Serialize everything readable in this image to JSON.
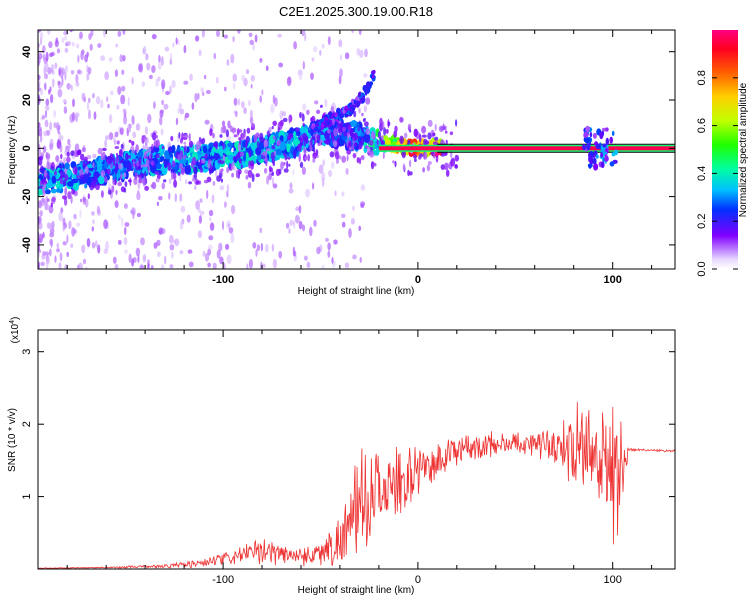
{
  "title": "C2E1.2025.300.19.00.R18",
  "chart_data": [
    {
      "type": "heatmap",
      "title": "C2E1.2025.300.19.00.R18",
      "xlabel": "Height of straight line (km)",
      "ylabel": "Frequency (Hz)",
      "xlim": [
        -195,
        132
      ],
      "ylim": [
        -50,
        49
      ],
      "x_ticks": [
        "-100",
        "0",
        "100"
      ],
      "y_ticks": [
        "-40",
        "-20",
        "0",
        "20",
        "40"
      ],
      "ridge": {
        "x": [
          -195,
          -170,
          -150,
          -130,
          -110,
          -90,
          -75,
          -65,
          -55,
          -48,
          -40,
          -30,
          -20,
          -10,
          0,
          10,
          30,
          60,
          90,
          100,
          132
        ],
        "freq": [
          -14,
          -11,
          -7,
          -5,
          -4,
          -2,
          0,
          2,
          5,
          7,
          6,
          5,
          2,
          1,
          0,
          0,
          0,
          0,
          0,
          0,
          0
        ],
        "amplitude": [
          0.35,
          0.3,
          0.3,
          0.32,
          0.35,
          0.35,
          0.33,
          0.33,
          0.32,
          0.3,
          0.25,
          0.3,
          0.45,
          0.7,
          0.85,
          0.9,
          0.95,
          0.95,
          0.95,
          0.95,
          0.95
        ]
      },
      "upper_branch": {
        "x": [
          -55,
          -45,
          -35,
          -28,
          -22
        ],
        "freq": [
          8,
          12,
          16,
          22,
          31
        ]
      }
    },
    {
      "type": "line",
      "xlabel": "Height of straight line (km)",
      "ylabel": "SNR (10 * v/v)",
      "y_multiplier": "(x10",
      "y_multiplier_exp": "4",
      "xlim": [
        -195,
        132
      ],
      "ylim": [
        0,
        3.3
      ],
      "x_ticks": [
        "-100",
        "0",
        "100"
      ],
      "y_ticks": [
        "1",
        "2",
        "3"
      ],
      "series": [
        {
          "name": "SNR",
          "color": "#ee3333",
          "x": [
            -195,
            -160,
            -130,
            -110,
            -100,
            -90,
            -80,
            -70,
            -60,
            -50,
            -40,
            -35,
            -30,
            -25,
            -20,
            -10,
            0,
            10,
            20,
            30,
            40,
            50,
            60,
            70,
            75,
            80,
            85,
            90,
            95,
            100,
            102,
            104,
            106,
            108,
            110,
            120,
            132
          ],
          "values": [
            0.01,
            0.02,
            0.04,
            0.08,
            0.13,
            0.2,
            0.24,
            0.22,
            0.18,
            0.22,
            0.38,
            0.6,
            0.9,
            1.0,
            1.05,
            1.2,
            1.35,
            1.5,
            1.62,
            1.7,
            1.72,
            1.74,
            1.75,
            1.72,
            1.7,
            1.68,
            1.65,
            1.6,
            1.55,
            1.4,
            1.5,
            1.4,
            1.3,
            1.65,
            1.65,
            1.64,
            1.63
          ],
          "noise": [
            0.005,
            0.01,
            0.03,
            0.08,
            0.1,
            0.15,
            0.2,
            0.18,
            0.15,
            0.2,
            0.4,
            0.6,
            0.8,
            0.8,
            0.7,
            0.5,
            0.4,
            0.3,
            0.25,
            0.22,
            0.2,
            0.2,
            0.22,
            0.3,
            0.4,
            0.6,
            0.8,
            0.9,
            1.0,
            1.2,
            1.4,
            1.0,
            0.8,
            0.02,
            0.02,
            0.02,
            0.02
          ]
        }
      ]
    }
  ],
  "colorbar": {
    "label": "Normalized spectral amplitude",
    "ticks": [
      "0.0",
      "0.2",
      "0.4",
      "0.6",
      "0.8"
    ]
  }
}
